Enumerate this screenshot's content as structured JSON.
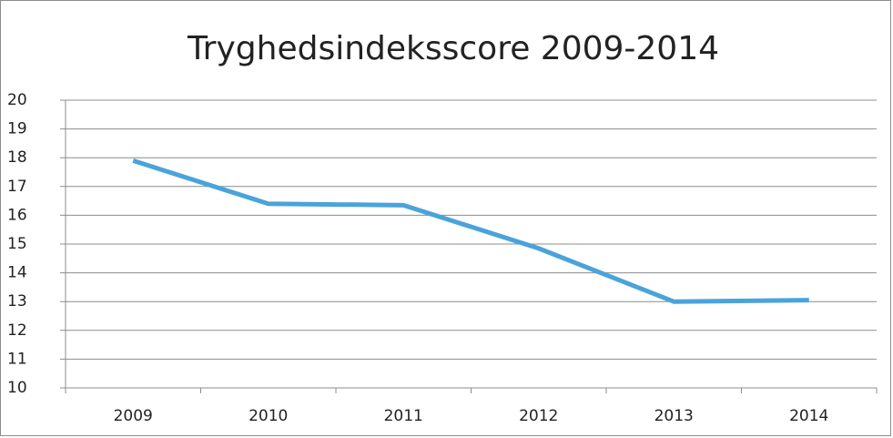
{
  "chart_data": {
    "type": "line",
    "title": "Tryghedsindeksscore 2009-2014",
    "categories": [
      "2009",
      "2010",
      "2011",
      "2012",
      "2013",
      "2014"
    ],
    "series": [
      {
        "name": "Tryghedsindeksscore",
        "color": "#4aa3da",
        "values": [
          17.9,
          16.4,
          16.35,
          14.85,
          13.0,
          13.05
        ]
      }
    ],
    "ylim": [
      10,
      20
    ],
    "yticks": [
      10,
      11,
      12,
      13,
      14,
      15,
      16,
      17,
      18,
      19,
      20
    ],
    "grid": true
  }
}
